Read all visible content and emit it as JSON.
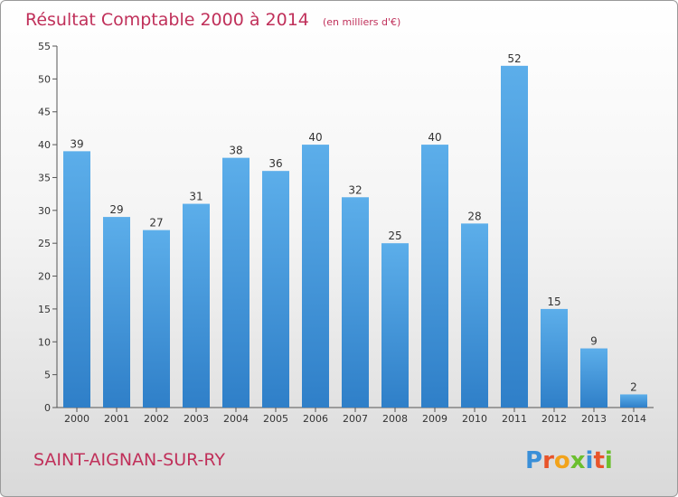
{
  "chart_data": {
    "type": "bar",
    "title": "Résultat Comptable 2000 à 2014",
    "subtitle": "(en milliers d'€)",
    "categories": [
      "2000",
      "2001",
      "2002",
      "2003",
      "2004",
      "2005",
      "2006",
      "2007",
      "2008",
      "2009",
      "2010",
      "2011",
      "2012",
      "2013",
      "2014"
    ],
    "values": [
      39,
      29,
      27,
      31,
      38,
      36,
      40,
      32,
      25,
      40,
      28,
      52,
      15,
      9,
      2
    ],
    "ylim": [
      0,
      55
    ],
    "yticks": [
      0,
      5,
      10,
      15,
      20,
      25,
      30,
      35,
      40,
      45,
      50,
      55
    ],
    "grid": false,
    "bar_color": "#4a9de0"
  },
  "location": "SAINT-AIGNAN-SUR-RY",
  "logo": {
    "text": "Proxiti",
    "letters": [
      {
        "ch": "P",
        "color": "#3a8fd8"
      },
      {
        "ch": "r",
        "color": "#e8542a"
      },
      {
        "ch": "o",
        "color": "#f2a31b"
      },
      {
        "ch": "x",
        "color": "#6bbf2e"
      },
      {
        "ch": "i",
        "color": "#3a8fd8"
      },
      {
        "ch": "t",
        "color": "#e8542a"
      },
      {
        "ch": "i",
        "color": "#6bbf2e"
      }
    ]
  }
}
